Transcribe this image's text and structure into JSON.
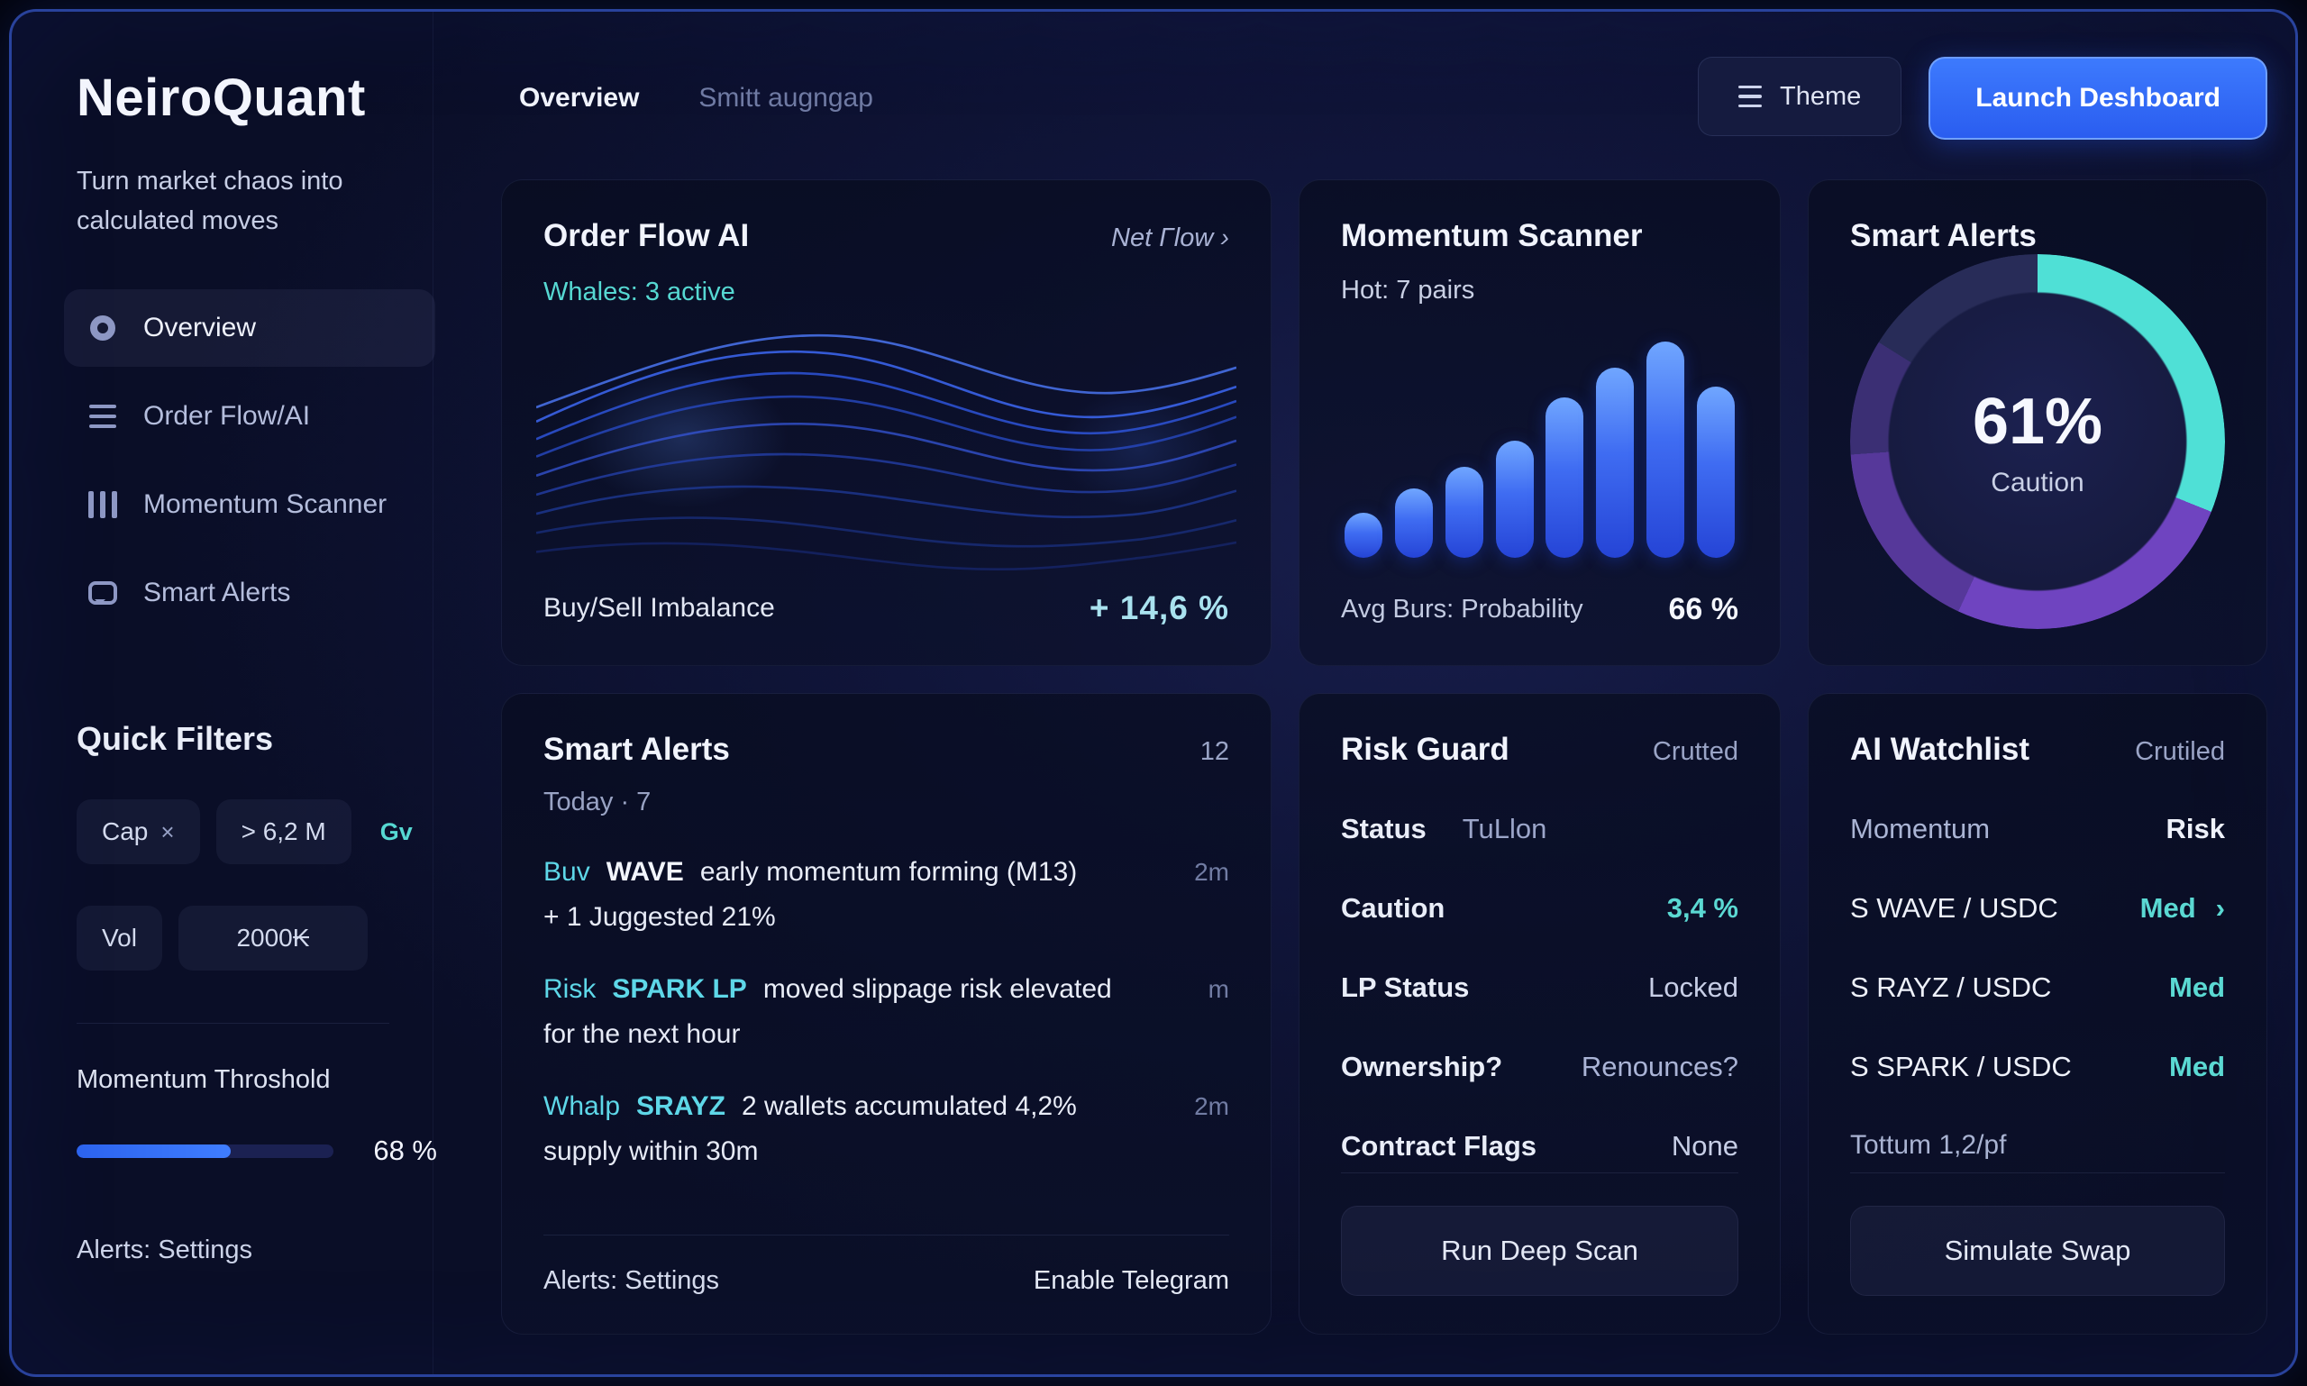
{
  "colors": {
    "accent_blue": "#2f6cf6",
    "teal": "#57d9d2",
    "cyan_value": "#a9e2ef",
    "purple": "#6f44c0",
    "text_primary": "#eef1fb",
    "text_dim": "#8a94ba"
  },
  "brand": {
    "logo": "NeiroQuant",
    "tagline": "Turn market chaos into calculated moves"
  },
  "topnav": {
    "tab_overview": "Overview",
    "tab_smitt": "Smitt augngap",
    "theme_label": "Theme",
    "launch_label": "Launch Deshboard"
  },
  "sidebar": {
    "nav": [
      {
        "label": "Overview"
      },
      {
        "label": "Order Flow/AI"
      },
      {
        "label": "Momentum Scanner"
      },
      {
        "label": "Smart Alerts"
      }
    ],
    "quick_filters_title": "Quick Filters",
    "cap_label": "Cap",
    "cap_close": "×",
    "range_value": "> 6,2 M",
    "gv_label": "Gv",
    "vol_label": "Vol",
    "vol_value": "2000₭",
    "threshold_label": "Momentum Throshold",
    "threshold_value": "68 %",
    "threshold_percent": 60,
    "alerts_settings": "Alerts: Settings"
  },
  "order_flow": {
    "title": "Order Flow AI",
    "link": "Net Γlow ›",
    "whales": "Whales: 3 active",
    "footer_label": "Buy/Sell Imbalance",
    "footer_value": "+ 14,6 %"
  },
  "momentum": {
    "title": "Momentum Scanner",
    "subtitle": "Hot: 7 pairs",
    "footer_label": "Avg Burs: Probability",
    "footer_value": "66 %"
  },
  "gauge_card": {
    "title": "Smart Alerts",
    "value": "61%",
    "label": "Caution"
  },
  "alerts": {
    "title": "Smart Alerts",
    "count": "12",
    "subtitle": "Today · 7",
    "items": [
      {
        "tag": "Buv",
        "symbol": "WAVE",
        "text": "early momentum forming (M13)",
        "time": "2m",
        "line2": "+ 1 Juggested 21%"
      },
      {
        "tag": "Risk",
        "symbol": "SPARK LP",
        "text": "moved slippage risk elevated",
        "time": "m",
        "line2": "for the next hour"
      },
      {
        "tag": "Whalp",
        "symbol": "SRAYZ",
        "text": "2 wallets accumulated 4,2%",
        "time": "2m",
        "line2": "supply within 30m"
      }
    ],
    "footer_left": "Alerts: Settings",
    "footer_right": "Enable Telegram"
  },
  "risk_guard": {
    "title": "Risk Guard",
    "badge": "Crutted",
    "rows": [
      {
        "label": "Status",
        "value": "TuLlon"
      },
      {
        "label": "Caution",
        "value": "3,4 %"
      },
      {
        "label": "LP Status",
        "value": "Locked"
      },
      {
        "label": "Ownership?",
        "value": "Renounces?"
      },
      {
        "label": "Contract Flags",
        "value": "None"
      }
    ],
    "button": "Run Deep Scan"
  },
  "watchlist": {
    "title": "AI Watchlist",
    "badge": "Crutiled",
    "header_row": {
      "label": "Momentum",
      "value": "Risk"
    },
    "rows": [
      {
        "pair": "S WAVE / USDC",
        "risk": "Med"
      },
      {
        "pair": "S RAYZ / USDC",
        "risk": "Med"
      },
      {
        "pair": "S SPARK / USDC",
        "risk": "Med"
      }
    ],
    "chevron": "›",
    "note": "Tottum 1,2/pf",
    "button": "Simulate Swap"
  },
  "chart_data": [
    {
      "type": "bar",
      "title": "Momentum Scanner bars",
      "categories": [
        "1",
        "2",
        "3",
        "4",
        "5",
        "6",
        "7",
        "8"
      ],
      "values": [
        21,
        32,
        42,
        54,
        74,
        88,
        100,
        79
      ],
      "ylabel": "relative momentum (% of tallest bar)",
      "grid": false,
      "legend": false
    },
    {
      "type": "pie",
      "title": "Smart Alerts risk gauge",
      "center_value": "61%",
      "center_label": "Caution",
      "segments": [
        {
          "name": "teal",
          "color": "#4fe0d6",
          "from": 0,
          "to": 112
        },
        {
          "name": "purple-bright",
          "color": "#6f44c0",
          "from": 112,
          "to": 205
        },
        {
          "name": "purple",
          "color": "#56389a",
          "from": 205,
          "to": 266
        },
        {
          "name": "purple-dark",
          "color": "#3b2f74",
          "from": 266,
          "to": 302
        },
        {
          "name": "navy",
          "color": "#282c58",
          "from": 302,
          "to": 360
        }
      ]
    },
    {
      "type": "line",
      "title": "Order Flow AI wave field",
      "description": "decorative flowing wave lines, no axes or tick values",
      "series_count": 9
    }
  ]
}
